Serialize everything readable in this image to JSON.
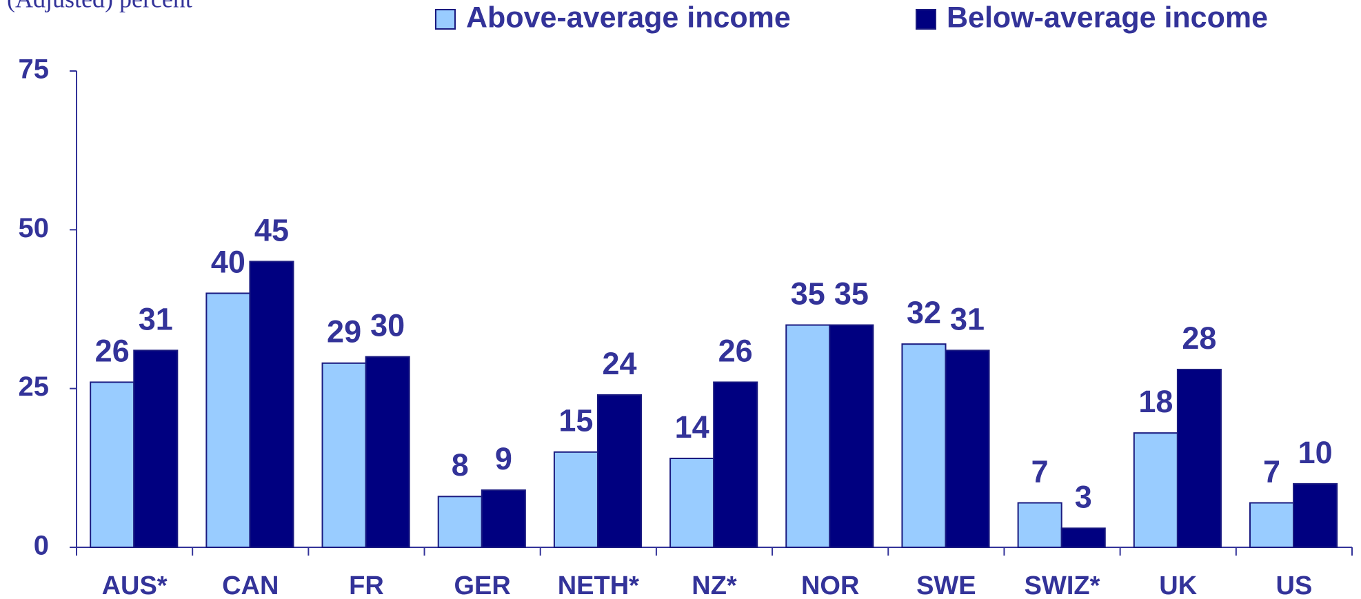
{
  "chart_data": {
    "type": "bar",
    "y_label": "(Adjusted) percent",
    "categories": [
      "AUS*",
      "CAN",
      "FR",
      "GER",
      "NETH*",
      "NZ*",
      "NOR",
      "SWE",
      "SWIZ*",
      "UK",
      "US"
    ],
    "series": [
      {
        "name": "Above-average income",
        "color": "#99ccff",
        "values": [
          26,
          40,
          29,
          8,
          15,
          14,
          35,
          32,
          7,
          18,
          7
        ]
      },
      {
        "name": "Below-average income",
        "color": "#000080",
        "values": [
          31,
          45,
          30,
          9,
          24,
          26,
          35,
          31,
          3,
          28,
          10
        ]
      }
    ],
    "ylim": [
      0,
      75
    ],
    "yticks": [
      0,
      25,
      50,
      75
    ],
    "grid": false,
    "legend": "top"
  }
}
